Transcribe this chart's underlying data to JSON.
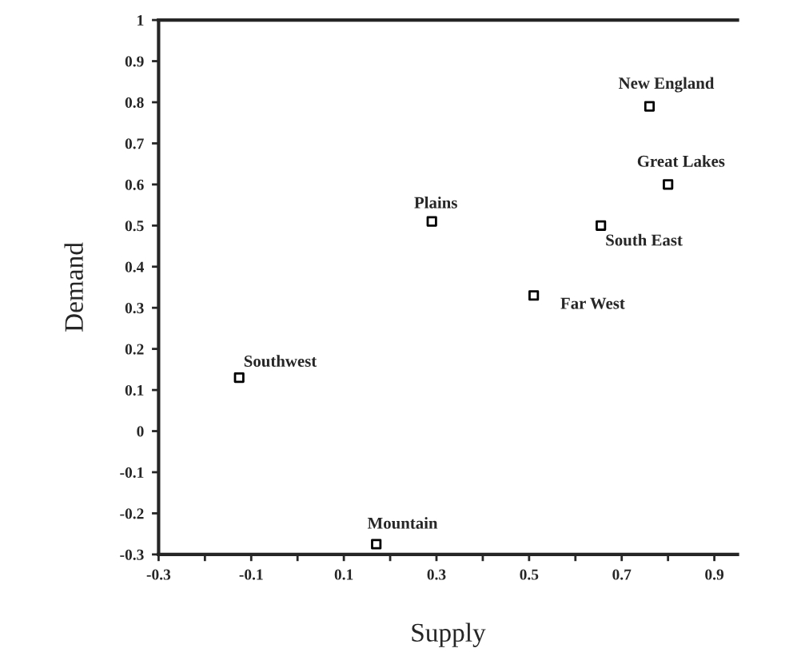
{
  "chart_data": {
    "type": "scatter",
    "xlabel": "Supply",
    "ylabel": "Demand",
    "x": [
      0.76,
      0.8,
      0.29,
      0.655,
      0.51,
      -0.126,
      0.17
    ],
    "values": [
      0.79,
      0.6,
      0.51,
      0.5,
      0.33,
      0.13,
      -0.275
    ],
    "color": "#000000",
    "marker": "square",
    "xlim": [
      -0.3,
      0.95
    ],
    "ylim": [
      -0.3,
      1
    ],
    "xticks": [
      {
        "value": -0.3,
        "label": "-0.3"
      },
      {
        "value": -0.2,
        "label": null
      },
      {
        "value": -0.1,
        "label": "-0.1"
      },
      {
        "value": 0,
        "label": null
      },
      {
        "value": 0.1,
        "label": "0.1"
      },
      {
        "value": 0.2,
        "label": null
      },
      {
        "value": 0.3,
        "label": "0.3"
      },
      {
        "value": 0.4,
        "label": null
      },
      {
        "value": 0.5,
        "label": "0.5"
      },
      {
        "value": 0.6,
        "label": null
      },
      {
        "value": 0.7,
        "label": "0.7"
      },
      {
        "value": 0.8,
        "label": null
      },
      {
        "value": 0.9,
        "label": "0.9"
      }
    ],
    "yticks": [
      -0.3,
      -0.2,
      -0.1,
      0,
      0.1,
      0.2,
      0.3,
      0.4,
      0.5,
      0.6,
      0.7,
      0.8,
      0.9,
      1
    ],
    "grid": false,
    "legend": false,
    "annotations": [
      {
        "text": "New England",
        "x": 0.76,
        "y": 0.79
      },
      {
        "text": "Great Lakes",
        "x": 0.8,
        "y": 0.6
      },
      {
        "text": "Plains",
        "x": 0.29,
        "y": 0.51
      },
      {
        "text": "South East",
        "x": 0.655,
        "y": 0.5
      },
      {
        "text": "Far West",
        "x": 0.51,
        "y": 0.33
      },
      {
        "text": "Southwest",
        "x": -0.126,
        "y": 0.13
      },
      {
        "text": "Mountain",
        "x": 0.17,
        "y": -0.275
      }
    ]
  }
}
